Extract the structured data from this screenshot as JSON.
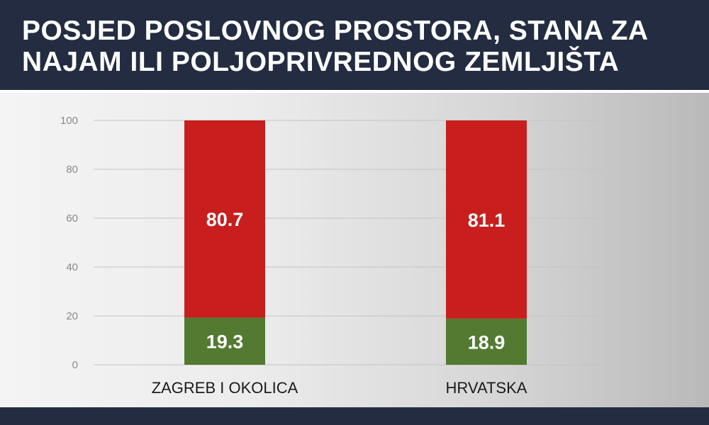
{
  "header": {
    "title": "POSJED POSLOVNOG PROSTORA, STANA ZA NAJAM ILI POLJOPRIVREDNOG ZEMLJIŠTA"
  },
  "colors": {
    "background_band": "#232c40",
    "series_red": "#c81e1e",
    "series_green": "#537a31"
  },
  "chart_data": {
    "type": "bar",
    "stacked": true,
    "title": "POSJED POSLOVNOG PROSTORA, STANA ZA NAJAM ILI POLJOPRIVREDNOG ZEMLJIŠTA",
    "categories": [
      "ZAGREB I OKOLICA",
      "HRVATSKA"
    ],
    "series": [
      {
        "values": [
          19.3,
          18.9
        ],
        "color": "#537a31"
      },
      {
        "values": [
          80.7,
          81.1
        ],
        "color": "#c81e1e"
      }
    ],
    "ylim": [
      0,
      100
    ],
    "yticks": [
      0,
      20,
      40,
      60,
      80,
      100
    ],
    "grid": true,
    "xlabel": "",
    "ylabel": ""
  }
}
